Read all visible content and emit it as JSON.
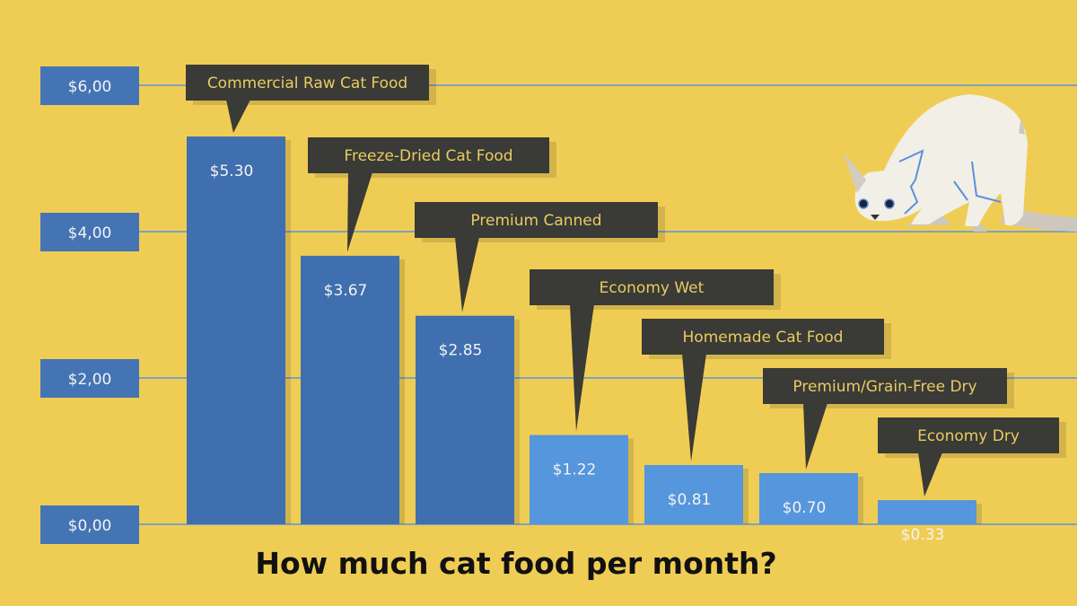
{
  "chart_data": {
    "type": "bar",
    "title": "How much cat food per month?",
    "categories": [
      "Commercial Raw Cat Food",
      "Freeze-Dried Cat Food",
      "Premium Canned",
      "Economy Wet",
      "Homemade Cat Food",
      "Premium/Grain-Free Dry",
      "Economy Dry"
    ],
    "values": [
      5.3,
      3.67,
      2.85,
      1.22,
      0.81,
      0.7,
      0.33
    ],
    "value_labels": [
      "$5.30",
      "$3.67",
      "$2.85",
      "$1.22",
      "$0.81",
      "$0.70",
      "$0.33"
    ],
    "yticks": [
      0,
      2,
      4,
      6
    ],
    "ytick_labels": [
      "$0,00",
      "$2,00",
      "$4,00",
      "$6,00"
    ],
    "ylim": [
      0,
      6
    ],
    "xlabel": "",
    "ylabel": "",
    "grid": true,
    "colors": {
      "background": "#efcd55",
      "bar_dark": "#3f6fae",
      "bar_light": "#5596dc",
      "callout": "#3a3a36",
      "callout_text": "#e8cc62",
      "axis_box": "#4474b4",
      "grid": "#7fa3b8"
    }
  }
}
